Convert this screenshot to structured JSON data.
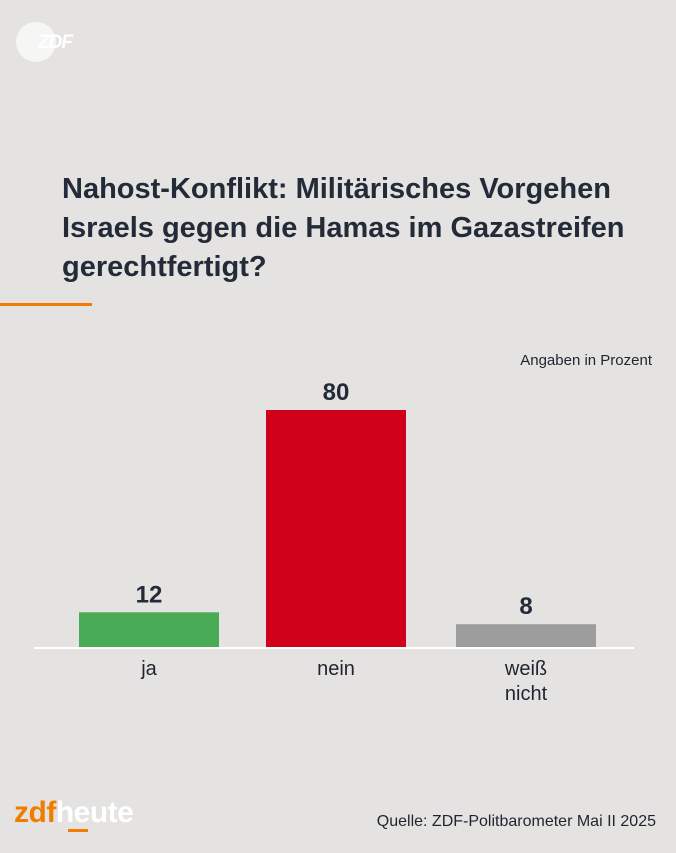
{
  "logo_top": {
    "text": "ZDF"
  },
  "title": "Nahost-Konflikt: Militärisches Vorgehen Israels gegen die Hamas im Gazastreifen gerechtfertigt?",
  "unit_note": "Angaben in Prozent",
  "chart_data": {
    "type": "bar",
    "title": "Nahost-Konflikt: Militärisches Vorgehen Israels gegen die Hamas im Gazastreifen gerechtfertigt?",
    "categories": [
      "ja",
      "nein",
      "weiß nicht"
    ],
    "category_lines": [
      [
        "ja"
      ],
      [
        "nein"
      ],
      [
        "weiß",
        "nicht"
      ]
    ],
    "values": [
      12,
      80,
      8
    ],
    "colors": [
      "#4aab57",
      "#d0021b",
      "#9d9d9d"
    ],
    "ylabel": "Angaben in Prozent",
    "ylim": [
      0,
      80
    ]
  },
  "brand": {
    "part1": "zdf",
    "part2": "heute"
  },
  "source": "Quelle: ZDF-Politbarometer Mai II 2025"
}
